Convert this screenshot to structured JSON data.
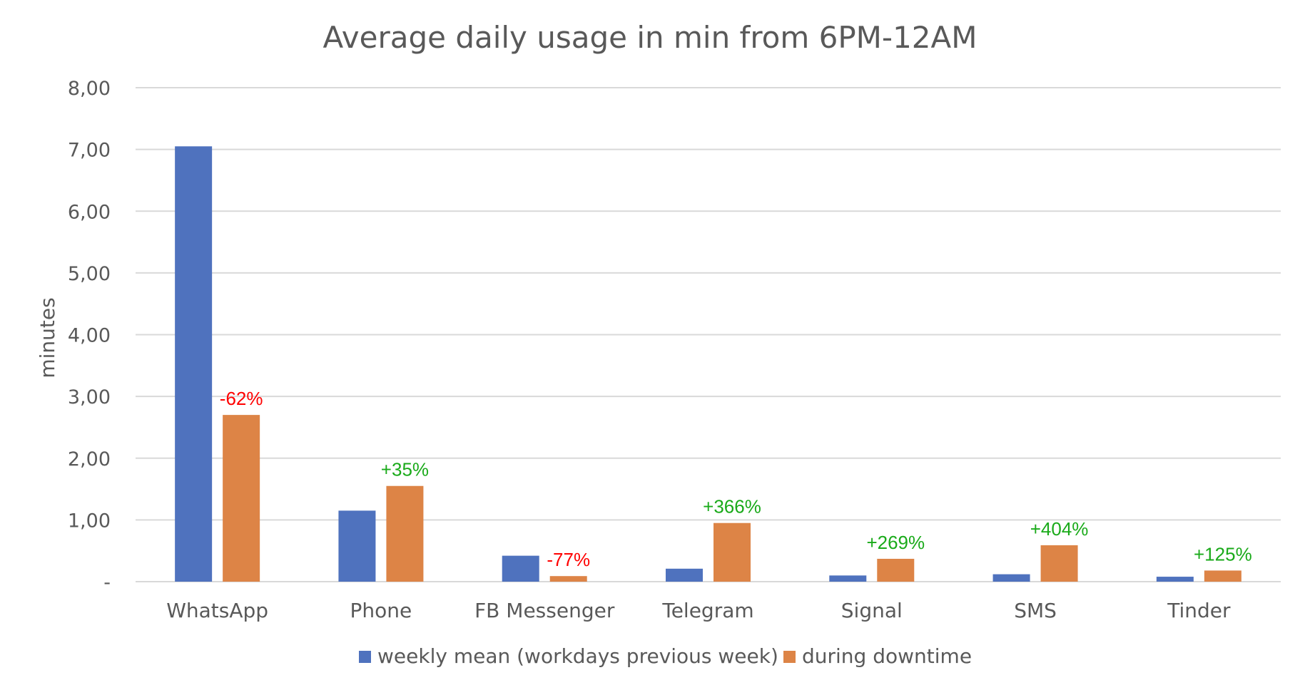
{
  "chart_data": {
    "type": "bar",
    "title": "Average daily usage in min from 6PM-12AM",
    "ylabel": "minutes",
    "xlabel": "",
    "ylim": [
      0,
      8
    ],
    "yticks": [
      {
        "value": 0,
        "label": "-"
      },
      {
        "value": 1,
        "label": "1,00"
      },
      {
        "value": 2,
        "label": "2,00"
      },
      {
        "value": 3,
        "label": "3,00"
      },
      {
        "value": 4,
        "label": "4,00"
      },
      {
        "value": 5,
        "label": "5,00"
      },
      {
        "value": 6,
        "label": "6,00"
      },
      {
        "value": 7,
        "label": "7,00"
      },
      {
        "value": 8,
        "label": "8,00"
      }
    ],
    "grid": true,
    "legend_position": "bottom",
    "categories": [
      "WhatsApp",
      "Phone",
      "FB Messenger",
      "Telegram",
      "Signal",
      "SMS",
      "Tinder"
    ],
    "series": [
      {
        "name": "weekly mean (workdays previous week)",
        "color": "#4f72be",
        "values": [
          7.05,
          1.15,
          0.42,
          0.21,
          0.1,
          0.12,
          0.08
        ]
      },
      {
        "name": "during downtime",
        "color": "#dd8446",
        "values": [
          2.7,
          1.55,
          0.09,
          0.95,
          0.37,
          0.59,
          0.18
        ]
      }
    ],
    "annotations": [
      {
        "text": "-62%",
        "color": "#ff0000"
      },
      {
        "text": "+35%",
        "color": "#1aaa1a"
      },
      {
        "text": "-77%",
        "color": "#ff0000"
      },
      {
        "text": "+366%",
        "color": "#1aaa1a"
      },
      {
        "text": "+269%",
        "color": "#1aaa1a"
      },
      {
        "text": "+404%",
        "color": "#1aaa1a"
      },
      {
        "text": "+125%",
        "color": "#1aaa1a"
      }
    ]
  }
}
